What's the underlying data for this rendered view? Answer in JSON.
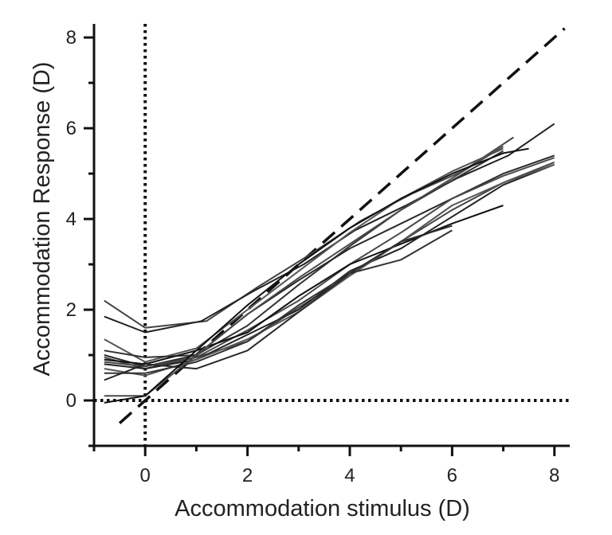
{
  "chart_data": {
    "type": "line",
    "xlabel": "Accommodation stimulus (D)",
    "ylabel": "Accommodation Response (D)",
    "xlim": [
      -1,
      8.3
    ],
    "ylim": [
      -1,
      8.3
    ],
    "x_ticks": [
      0,
      2,
      4,
      6,
      8
    ],
    "y_ticks": [
      0,
      2,
      4,
      6,
      8
    ],
    "x_tick_labels": [
      "0",
      "2",
      "4",
      "6",
      "8"
    ],
    "y_tick_labels": [
      "0",
      "2",
      "4",
      "6",
      "8"
    ],
    "reference_lines": [
      {
        "kind": "identity",
        "style": "dashed",
        "from": [
          -0.5,
          -0.5
        ],
        "to": [
          8.2,
          8.2
        ]
      },
      {
        "kind": "vertical",
        "style": "dotted",
        "x": 0
      },
      {
        "kind": "horizontal",
        "style": "dotted",
        "y": 0
      }
    ],
    "series": [
      {
        "x": [
          -0.8,
          0,
          1.2,
          2.2,
          3.2,
          4.2,
          5.2,
          6.2,
          7.2
        ],
        "y": [
          2.2,
          1.6,
          1.75,
          2.5,
          3.2,
          3.95,
          4.55,
          5.05,
          5.8
        ]
      },
      {
        "x": [
          -0.8,
          0,
          1.1,
          2.1,
          3.1,
          4.1,
          5.1,
          6.1,
          7.1,
          8.0
        ],
        "y": [
          1.85,
          1.5,
          1.75,
          2.4,
          3.0,
          3.75,
          4.3,
          4.9,
          5.4,
          6.1
        ]
      },
      {
        "x": [
          -0.8,
          0,
          1.0,
          2.0,
          3.0,
          4.0,
          5.0,
          6.0,
          7.0
        ],
        "y": [
          1.35,
          0.85,
          1.15,
          2.0,
          2.85,
          3.7,
          4.45,
          5.05,
          5.55
        ]
      },
      {
        "x": [
          -0.8,
          0,
          1.0,
          2.0,
          3.0,
          4.0,
          5.0,
          6.0,
          7.0
        ],
        "y": [
          1.1,
          0.95,
          1.0,
          1.65,
          2.55,
          3.4,
          4.2,
          4.85,
          5.5
        ]
      },
      {
        "x": [
          -0.8,
          0,
          1.0,
          2.0,
          3.0,
          4.0,
          5.0,
          6.0,
          7.0,
          8.0
        ],
        "y": [
          1.0,
          0.75,
          1.0,
          1.9,
          2.65,
          3.35,
          3.9,
          4.45,
          5.0,
          5.4
        ]
      },
      {
        "x": [
          -0.8,
          0,
          1.0,
          2.0,
          3.0,
          4.0,
          5.0,
          6.0,
          7.0,
          8.0
        ],
        "y": [
          0.95,
          0.7,
          0.95,
          1.55,
          2.2,
          3.0,
          3.7,
          4.45,
          4.95,
          5.35
        ]
      },
      {
        "x": [
          -0.8,
          0,
          1.0,
          2.0,
          3.0,
          4.0,
          5.0,
          6.0,
          7.0
        ],
        "y": [
          0.9,
          0.8,
          1.1,
          1.5,
          2.3,
          3.0,
          3.45,
          3.9,
          4.3
        ]
      },
      {
        "x": [
          -0.8,
          0,
          1.0,
          2.0,
          3.0,
          4.0,
          5.0,
          6.0,
          7.0,
          8.0
        ],
        "y": [
          0.85,
          0.75,
          0.95,
          1.3,
          2.05,
          2.75,
          3.5,
          4.2,
          4.8,
          5.25
        ]
      },
      {
        "x": [
          -0.8,
          0,
          1.0,
          2.0,
          3.0,
          4.0,
          5.0,
          6.0,
          7.0,
          8.0
        ],
        "y": [
          0.8,
          0.7,
          0.9,
          1.45,
          2.0,
          2.85,
          3.35,
          4.05,
          4.75,
          5.2
        ]
      },
      {
        "x": [
          -0.8,
          0,
          1.0,
          2.0,
          3.0,
          4.0,
          5.0,
          6.0,
          7.0,
          8.0
        ],
        "y": [
          0.7,
          0.55,
          0.9,
          1.35,
          1.95,
          2.75,
          3.5,
          4.3,
          4.8,
          5.2
        ]
      },
      {
        "x": [
          -0.8,
          0,
          1.0,
          2.0,
          3.0,
          4.0,
          5.0,
          6.0
        ],
        "y": [
          0.6,
          0.6,
          0.85,
          1.3,
          2.1,
          2.8,
          3.1,
          3.75
        ]
      },
      {
        "x": [
          -0.8,
          0,
          1.0,
          2.0,
          3.0,
          4.0,
          5.0,
          6.0
        ],
        "y": [
          0.45,
          0.8,
          0.7,
          1.1,
          1.95,
          2.8,
          3.5,
          3.85
        ]
      },
      {
        "x": [
          -0.8,
          0,
          1.0,
          2.0,
          3.0,
          4.0,
          5.0,
          6.0,
          7.0
        ],
        "y": [
          0.1,
          0.1,
          1.0,
          1.9,
          2.7,
          3.45,
          4.2,
          4.9,
          5.6
        ]
      },
      {
        "x": [
          -0.8,
          0,
          1.0,
          2.0,
          3.0,
          4.0,
          5.0,
          6.0,
          7.0,
          7.5
        ],
        "y": [
          -0.05,
          0.1,
          1.1,
          2.1,
          3.0,
          3.8,
          4.45,
          5.0,
          5.45,
          5.55
        ]
      }
    ]
  }
}
